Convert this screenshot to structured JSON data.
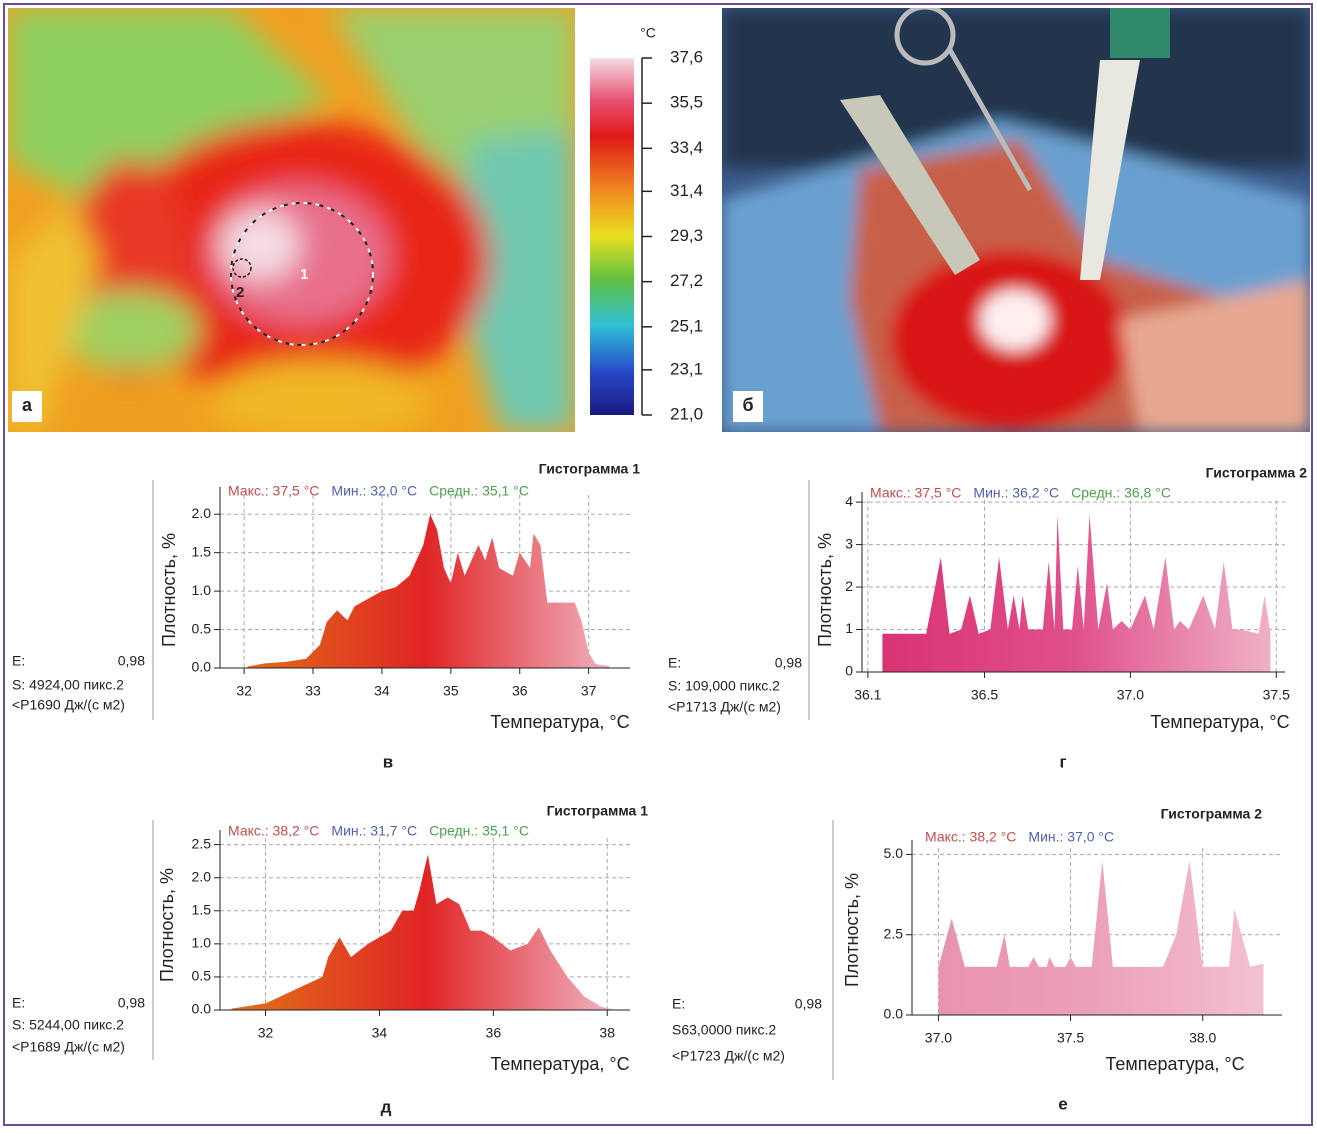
{
  "panels": {
    "thermal": {
      "label": "а",
      "markers": [
        "1",
        "2"
      ]
    },
    "photo": {
      "label": "б"
    }
  },
  "colorbar": {
    "unit": "°C",
    "lim": [
      21.0,
      37.6
    ],
    "ticks": [
      {
        "value": 37.6,
        "label": "37,6"
      },
      {
        "value": 35.5,
        "label": "35,5"
      },
      {
        "value": 33.4,
        "label": "33,4"
      },
      {
        "value": 31.4,
        "label": "31,4"
      },
      {
        "value": 29.3,
        "label": "29,3"
      },
      {
        "value": 27.2,
        "label": "27,2"
      },
      {
        "value": 25.1,
        "label": "25,1"
      },
      {
        "value": 23.1,
        "label": "23,1"
      },
      {
        "value": 21.0,
        "label": "21,0"
      }
    ]
  },
  "chart_data": [
    {
      "type": "area",
      "title": "Гистограмма  1",
      "stats": [
        {
          "text": "Макс.: 37,5 °C",
          "color": "#c0504d"
        },
        {
          "text": "Мин.: 32,0 °C",
          "color": "#4f5fb0"
        },
        {
          "text": "Средн.: 35,1 °C",
          "color": "#4ea04e"
        }
      ],
      "x": [
        32.05,
        32.3,
        32.6,
        32.9,
        33.1,
        33.2,
        33.35,
        33.5,
        33.6,
        33.8,
        34.0,
        34.2,
        34.4,
        34.5,
        34.6,
        34.7,
        34.8,
        34.9,
        35.0,
        35.1,
        35.2,
        35.4,
        35.5,
        35.6,
        35.7,
        35.9,
        36.0,
        36.15,
        36.2,
        36.3,
        36.4,
        36.6,
        36.8,
        36.9,
        37.0,
        37.1,
        37.3
      ],
      "values": [
        0.02,
        0.06,
        0.08,
        0.12,
        0.3,
        0.6,
        0.75,
        0.62,
        0.8,
        0.9,
        1.0,
        1.05,
        1.2,
        1.4,
        1.6,
        2.0,
        1.8,
        1.3,
        1.1,
        1.5,
        1.2,
        1.6,
        1.4,
        1.7,
        1.3,
        1.2,
        1.5,
        1.3,
        1.75,
        1.6,
        0.85,
        0.85,
        0.85,
        0.6,
        0.2,
        0.05,
        0.03
      ],
      "xlim": [
        31.65,
        37.6
      ],
      "ylim": [
        0,
        2.25
      ],
      "xticks": [
        32,
        33,
        34,
        35,
        36,
        37
      ],
      "yticks": [
        {
          "value": 0,
          "label": "0.0"
        },
        {
          "value": 0.5,
          "label": "0.5"
        },
        {
          "value": 1,
          "label": "1.0"
        },
        {
          "value": 1.5,
          "label": "1.5"
        },
        {
          "value": 2,
          "label": "2.0"
        }
      ],
      "ylabel": "Плотность, %",
      "xlabel": "Температура, °C",
      "caption": "в",
      "grid": true,
      "color_stops": [
        "#e07818",
        "#e02424",
        "#f2c0d0"
      ],
      "info": {
        "e_label": "E:",
        "e_value": "0,98",
        "s": "S: 4924,00 пикс.2",
        "p": "<P1690 Дж/(с м2)"
      }
    },
    {
      "type": "area",
      "title": "Гистограмма  2",
      "stats": [
        {
          "text": "Макс.: 37,5 °C",
          "color": "#c0504d"
        },
        {
          "text": "Мин.: 36,2 °C",
          "color": "#4f5fb0"
        },
        {
          "text": "Средн.: 36,8 °C",
          "color": "#4ea04e"
        }
      ],
      "x": [
        36.15,
        36.3,
        36.35,
        36.38,
        36.42,
        36.45,
        36.48,
        36.52,
        36.55,
        36.58,
        36.6,
        36.62,
        36.63,
        36.65,
        36.7,
        36.72,
        36.74,
        36.75,
        36.77,
        36.8,
        36.82,
        36.84,
        36.86,
        36.89,
        36.92,
        36.94,
        36.97,
        37.0,
        37.05,
        37.08,
        37.12,
        37.15,
        37.17,
        37.2,
        37.25,
        37.29,
        37.32,
        37.35,
        37.38,
        37.44,
        37.46,
        37.48
      ],
      "values": [
        0.9,
        0.9,
        2.7,
        0.9,
        1.0,
        1.8,
        0.9,
        1.0,
        2.7,
        1.0,
        1.8,
        1.0,
        1.8,
        1.0,
        1.0,
        2.6,
        1.0,
        3.7,
        1.0,
        1.0,
        2.5,
        1.0,
        3.7,
        1.0,
        2.1,
        1.0,
        1.2,
        1.0,
        1.8,
        1.0,
        2.7,
        1.0,
        1.2,
        1.0,
        1.8,
        1.0,
        2.6,
        1.0,
        1.0,
        0.9,
        1.8,
        0.9
      ],
      "xlim": [
        36.08,
        37.53
      ],
      "ylim": [
        0,
        4.05
      ],
      "xticks": [
        36.1,
        36.5,
        {
          "value": 37,
          "label": "37.0"
        },
        37.5
      ],
      "yticks": [
        0,
        1,
        2,
        3,
        4
      ],
      "ylabel": "Плотность, %",
      "xlabel": "Температура, °C",
      "caption": "г",
      "grid": true,
      "color_stops": [
        "#d83070",
        "#e0508a",
        "#f0b8cc"
      ],
      "info": {
        "e_label": "E:",
        "e_value": "0,98",
        "s": "S: 109,000 пикс.2",
        "p": "<P1713 Дж/(с м2)"
      }
    },
    {
      "type": "area",
      "title": "Гистограмма  1",
      "stats": [
        {
          "text": "Макс.: 38,2 °C",
          "color": "#c0504d"
        },
        {
          "text": "Мин.: 31,7 °C",
          "color": "#4f5fb0"
        },
        {
          "text": "Средн.: 35,1 °C",
          "color": "#4ea04e"
        }
      ],
      "x": [
        31.4,
        32.0,
        32.5,
        33.0,
        33.1,
        33.3,
        33.5,
        33.8,
        34.0,
        34.2,
        34.4,
        34.6,
        34.7,
        34.85,
        35.0,
        35.2,
        35.4,
        35.6,
        35.8,
        36.0,
        36.3,
        36.6,
        36.8,
        37.0,
        37.3,
        37.6,
        37.9,
        38.1
      ],
      "values": [
        0.02,
        0.1,
        0.3,
        0.5,
        0.8,
        1.1,
        0.8,
        1.0,
        1.1,
        1.2,
        1.5,
        1.5,
        1.8,
        2.35,
        1.6,
        1.7,
        1.6,
        1.2,
        1.2,
        1.1,
        0.9,
        1.0,
        1.25,
        0.9,
        0.5,
        0.2,
        0.05,
        0.01
      ],
      "xlim": [
        31.2,
        38.4
      ],
      "ylim": [
        0,
        2.6
      ],
      "xticks": [
        32,
        34,
        36,
        38
      ],
      "yticks": [
        {
          "value": 0,
          "label": "0.0"
        },
        {
          "value": 0.5,
          "label": "0.5"
        },
        {
          "value": 1,
          "label": "1.0"
        },
        {
          "value": 1.5,
          "label": "1.5"
        },
        {
          "value": 2,
          "label": "2.0"
        },
        {
          "value": 2.5,
          "label": "2.5"
        }
      ],
      "ylabel": "Плотность, %",
      "xlabel": "Температура, °C",
      "caption": "д",
      "grid": true,
      "color_stops": [
        "#e07818",
        "#e02424",
        "#f2c0d0"
      ],
      "info": {
        "e_label": "E:",
        "e_value": "0,98",
        "s": "S: 5244,00 пикс.2",
        "p": "<P1689 Дж/(с м2)"
      }
    },
    {
      "type": "area",
      "title": "Гистограмма  2",
      "stats": [
        {
          "text": "Макс.: 38,2 °C",
          "color": "#c0504d"
        },
        {
          "text": "Мин.: 37,0 °C",
          "color": "#4f5fb0"
        }
      ],
      "x": [
        37.0,
        37.05,
        37.1,
        37.22,
        37.25,
        37.27,
        37.34,
        37.36,
        37.38,
        37.41,
        37.42,
        37.44,
        37.48,
        37.5,
        37.52,
        37.58,
        37.62,
        37.66,
        37.85,
        37.9,
        37.95,
        38.0,
        38.1,
        38.12,
        38.18,
        38.23
      ],
      "values": [
        1.5,
        3.0,
        1.5,
        1.5,
        2.5,
        1.5,
        1.5,
        1.8,
        1.5,
        1.5,
        1.8,
        1.5,
        1.5,
        1.8,
        1.5,
        1.5,
        4.8,
        1.5,
        1.5,
        2.5,
        4.8,
        1.5,
        1.5,
        3.3,
        1.5,
        1.6
      ],
      "xlim": [
        36.9,
        38.3
      ],
      "ylim": [
        0,
        5.2
      ],
      "xticks": [
        {
          "value": 37,
          "label": "37.0"
        },
        37.5,
        {
          "value": 38,
          "label": "38.0"
        }
      ],
      "yticks": [
        {
          "value": 0,
          "label": "0.0"
        },
        2.5,
        {
          "value": 5,
          "label": "5.0"
        }
      ],
      "ylabel": "Плотность, %",
      "xlabel": "Температура, °C",
      "caption": "е",
      "grid": true,
      "color_stops": [
        "#e890b0",
        "#eca0bc",
        "#f4c4d4"
      ],
      "info": {
        "e_label": "E:",
        "e_value": "0,98",
        "s": "S63,0000 пикс.2",
        "p": "<P1723 Дж/(с м2)"
      }
    }
  ]
}
